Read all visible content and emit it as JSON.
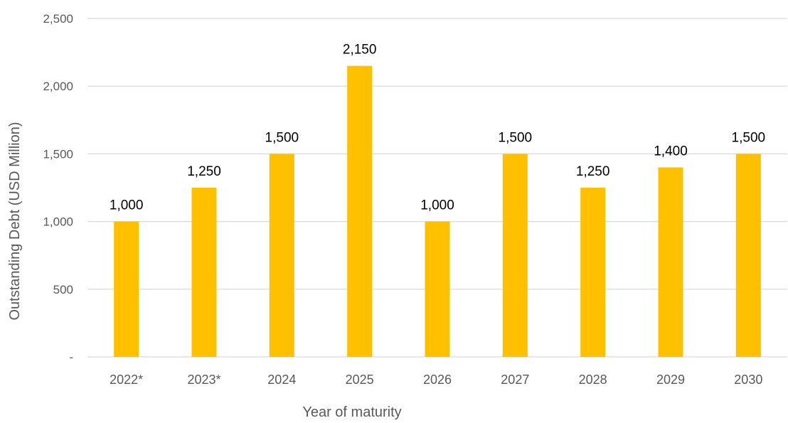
{
  "chart_data": {
    "type": "bar",
    "title": "",
    "xlabel": "Year of maturity",
    "ylabel": "Outstanding Debt (USD Million)",
    "categories": [
      "2022*",
      "2023*",
      "2024",
      "2025",
      "2026",
      "2027",
      "2028",
      "2029",
      "2030"
    ],
    "values": [
      1000,
      1250,
      1500,
      2150,
      1000,
      1500,
      1250,
      1400,
      1500
    ],
    "data_labels": [
      "1,000",
      "1,250",
      "1,500",
      "2,150",
      "1,000",
      "1,500",
      "1,250",
      "1,400",
      "1,500"
    ],
    "ylim": [
      0,
      2500
    ],
    "yticks": [
      0,
      500,
      1000,
      1500,
      2000,
      2500
    ],
    "ytick_labels": [
      "-",
      "500",
      "1,000",
      "1,500",
      "2,000",
      "2,500"
    ],
    "grid": true,
    "legend": "none",
    "colors": {
      "bar": "#FFC000",
      "grid": "#D9D9D9",
      "tick_text": "#595959",
      "data_label_text": "#000000"
    }
  }
}
